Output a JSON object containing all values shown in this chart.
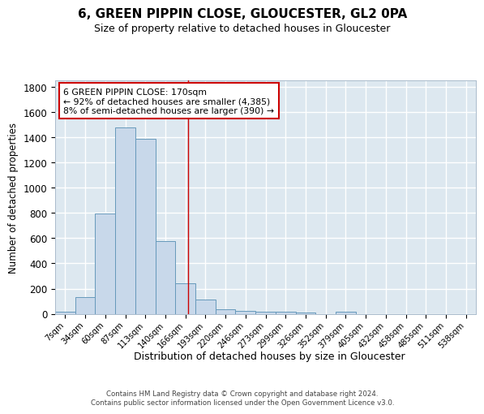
{
  "title": "6, GREEN PIPPIN CLOSE, GLOUCESTER, GL2 0PA",
  "subtitle": "Size of property relative to detached houses in Gloucester",
  "xlabel": "Distribution of detached houses by size in Gloucester",
  "ylabel": "Number of detached properties",
  "bins": [
    "7sqm",
    "34sqm",
    "60sqm",
    "87sqm",
    "113sqm",
    "140sqm",
    "166sqm",
    "193sqm",
    "220sqm",
    "246sqm",
    "273sqm",
    "299sqm",
    "326sqm",
    "352sqm",
    "379sqm",
    "405sqm",
    "432sqm",
    "458sqm",
    "485sqm",
    "511sqm",
    "538sqm"
  ],
  "values": [
    18,
    135,
    795,
    1480,
    1385,
    575,
    245,
    115,
    35,
    25,
    18,
    15,
    12,
    0,
    18,
    0,
    0,
    0,
    0,
    0
  ],
  "bar_color": "#c8d8ea",
  "bar_edge_color": "#6699bb",
  "background_color": "#dde8f0",
  "grid_color": "#ffffff",
  "vline_color": "#cc0000",
  "annotation_line1": "6 GREEN PIPPIN CLOSE: 170sqm",
  "annotation_line2": "← 92% of detached houses are smaller (4,385)",
  "annotation_line3": "8% of semi-detached houses are larger (390) →",
  "annotation_box_color": "white",
  "annotation_border_color": "#cc0000",
  "footer_text": "Contains HM Land Registry data © Crown copyright and database right 2024.\nContains public sector information licensed under the Open Government Licence v3.0.",
  "ylim": [
    0,
    1850
  ],
  "yticks": [
    0,
    200,
    400,
    600,
    800,
    1000,
    1200,
    1400,
    1600,
    1800
  ]
}
